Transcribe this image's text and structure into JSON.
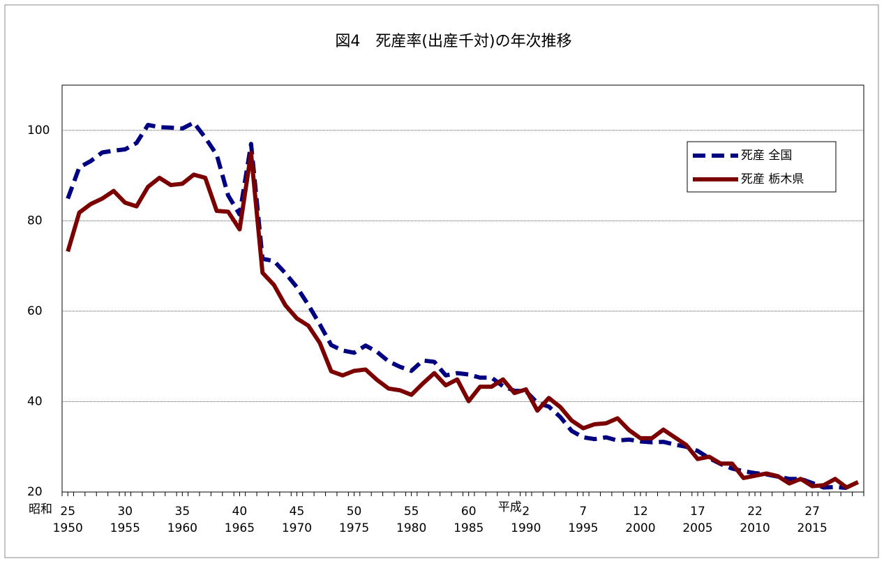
{
  "chart_data": {
    "type": "line",
    "title": "図4　死産率(出産千対)の年次推移",
    "x": [
      1950,
      1951,
      1952,
      1953,
      1954,
      1955,
      1956,
      1957,
      1958,
      1959,
      1960,
      1961,
      1962,
      1963,
      1964,
      1965,
      1966,
      1967,
      1968,
      1969,
      1970,
      1971,
      1972,
      1973,
      1974,
      1975,
      1976,
      1977,
      1978,
      1979,
      1980,
      1981,
      1982,
      1983,
      1984,
      1985,
      1986,
      1987,
      1988,
      1989,
      1990,
      1991,
      1992,
      1993,
      1994,
      1995,
      1996,
      1997,
      1998,
      1999,
      2000,
      2001,
      2002,
      2003,
      2004,
      2005,
      2006,
      2007,
      2008,
      2009,
      2010,
      2011,
      2012,
      2013,
      2014,
      2015,
      2016,
      2017,
      2018,
      2019
    ],
    "xlim": [
      1949.5,
      2019.5
    ],
    "xticks": [
      1950,
      1955,
      1960,
      1965,
      1970,
      1975,
      1980,
      1985,
      1990,
      1995,
      2000,
      2005,
      2010,
      2015
    ],
    "era_labels": [
      "25",
      "30",
      "35",
      "40",
      "45",
      "50",
      "55",
      "60",
      "2",
      "7",
      "12",
      "17",
      "22",
      "27"
    ],
    "era_names": [
      "昭和",
      "平成"
    ],
    "ylim": [
      20,
      110
    ],
    "yticks": [
      20,
      40,
      60,
      80,
      100
    ],
    "grid": true,
    "legend": "upper right",
    "series": [
      {
        "name": "死産 全国",
        "color": "#000080",
        "dash": true,
        "values": [
          84.9,
          91.8,
          93.2,
          95.1,
          95.5,
          95.8,
          97.2,
          101.2,
          100.7,
          100.6,
          100.4,
          101.7,
          98.4,
          94.6,
          85.6,
          81.4,
          97.0,
          71.6,
          71.1,
          68.4,
          65.3,
          61.4,
          57.1,
          52.5,
          51.3,
          50.8,
          52.4,
          51.0,
          48.9,
          47.7,
          46.8,
          49.1,
          48.8,
          45.8,
          46.3,
          46.0,
          45.3,
          45.3,
          43.4,
          42.4,
          42.3,
          39.7,
          38.9,
          36.6,
          33.5,
          32.1,
          31.7,
          32.1,
          31.4,
          31.6,
          31.2,
          31.0,
          31.1,
          30.5,
          30.0,
          29.1,
          27.5,
          26.2,
          25.2,
          24.6,
          24.2,
          23.9,
          23.4,
          22.9,
          22.9,
          22.0,
          21.0,
          21.1,
          20.9,
          null
        ]
      },
      {
        "name": "死産 栃木県",
        "color": "#7b0000",
        "dash": false,
        "values": [
          73.2,
          81.8,
          83.7,
          84.9,
          86.6,
          84.0,
          83.2,
          87.5,
          89.5,
          87.9,
          88.2,
          90.2,
          89.5,
          82.2,
          82.0,
          78.1,
          95.0,
          68.5,
          65.8,
          61.3,
          58.4,
          56.8,
          53.0,
          46.7,
          45.8,
          46.8,
          47.1,
          44.8,
          42.9,
          42.5,
          41.5,
          44.0,
          46.3,
          43.6,
          44.9,
          40.1,
          43.3,
          43.3,
          44.9,
          41.9,
          42.7,
          38.0,
          40.8,
          38.8,
          35.8,
          34.1,
          35.0,
          35.2,
          36.3,
          33.7,
          31.9,
          31.9,
          33.8,
          32.1,
          30.4,
          27.3,
          27.8,
          26.3,
          26.3,
          23.1,
          23.6,
          24.1,
          23.5,
          21.9,
          22.9,
          21.3,
          21.5,
          22.9,
          21.0,
          22.2
        ]
      }
    ]
  }
}
